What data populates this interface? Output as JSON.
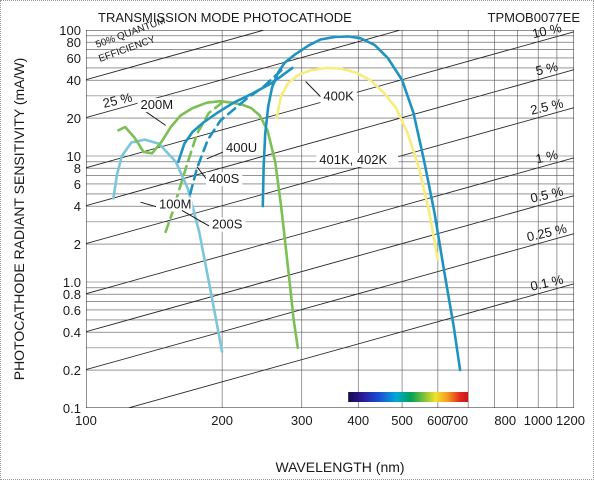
{
  "chart_data": {
    "type": "line",
    "title": "TRANSMISSION MODE PHOTOCATHODE",
    "subtitle": "TPMOB0077EE",
    "xlabel": "WAVELENGTH (nm)",
    "ylabel": "PHOTOCATHODE RADIANT SENSITIVITY (mA/W)",
    "x_scale": "log",
    "y_scale": "log",
    "xlim": [
      100,
      1200
    ],
    "ylim": [
      0.1,
      100
    ],
    "grid": true,
    "x_ticks": [
      {
        "v": 100,
        "label": "100"
      },
      {
        "v": 200,
        "label": "200"
      },
      {
        "v": 300,
        "label": "300"
      },
      {
        "v": 400,
        "label": "400"
      },
      {
        "v": 500,
        "label": "500"
      },
      {
        "v": 600,
        "label": "600"
      },
      {
        "v": 700,
        "label": "700"
      },
      {
        "v": 800,
        "label": "800"
      },
      {
        "v": 1000,
        "label": "1000"
      },
      {
        "v": 1200,
        "label": "1200"
      }
    ],
    "y_ticks": [
      {
        "v": 0.1,
        "label": "0.1"
      },
      {
        "v": 0.2,
        "label": "0.2"
      },
      {
        "v": 0.4,
        "label": "0.4"
      },
      {
        "v": 0.6,
        "label": "0.6"
      },
      {
        "v": 0.8,
        "label": "0.8"
      },
      {
        "v": 1,
        "label": "1.0"
      },
      {
        "v": 2,
        "label": "2"
      },
      {
        "v": 4,
        "label": "4"
      },
      {
        "v": 6,
        "label": "6"
      },
      {
        "v": 8,
        "label": "8"
      },
      {
        "v": 10,
        "label": "10"
      },
      {
        "v": 20,
        "label": "20"
      },
      {
        "v": 40,
        "label": "40"
      },
      {
        "v": 60,
        "label": "60"
      },
      {
        "v": 80,
        "label": "80"
      },
      {
        "v": 100,
        "label": "100"
      }
    ],
    "quantum_efficiency": {
      "caption": [
        "50% QUANTUM",
        "EFFICIENCY"
      ],
      "lines": [
        {
          "label": "25 %",
          "qe": 0.25
        },
        {
          "label": "10 %",
          "qe": 0.1
        },
        {
          "label": "5 %",
          "qe": 0.05
        },
        {
          "label": "2.5 %",
          "qe": 0.025
        },
        {
          "label": "1 %",
          "qe": 0.01
        },
        {
          "label": "0.5 %",
          "qe": 0.005
        },
        {
          "label": "0.25 %",
          "qe": 0.0025
        },
        {
          "label": "0.1 %",
          "qe": 0.001
        }
      ],
      "extra": [
        0.5
      ]
    },
    "series": [
      {
        "name": "100M",
        "color": "#7cc6dc",
        "dash": false,
        "points": [
          [
            115,
            4.6
          ],
          [
            117,
            7
          ],
          [
            120,
            10
          ],
          [
            126,
            12.8
          ],
          [
            135,
            13.5
          ],
          [
            145,
            12.5
          ],
          [
            158,
            9
          ],
          [
            168,
            5.5
          ],
          [
            178,
            2.5
          ],
          [
            188,
            0.9
          ],
          [
            194,
            0.5
          ],
          [
            200,
            0.28
          ]
        ]
      },
      {
        "name": "200M",
        "color": "#7cbf55",
        "dash": false,
        "points": [
          [
            118,
            16
          ],
          [
            122,
            17
          ],
          [
            128,
            14
          ],
          [
            134,
            10.8
          ],
          [
            140,
            10.5
          ],
          [
            147,
            13
          ],
          [
            154,
            17
          ],
          [
            162,
            21
          ],
          [
            172,
            24
          ],
          [
            185,
            26.5
          ],
          [
            198,
            27.2
          ],
          [
            210,
            26.5
          ],
          [
            222,
            25.5
          ],
          [
            232,
            24
          ],
          [
            242,
            21
          ],
          [
            252,
            16
          ],
          [
            262,
            9
          ],
          [
            270,
            4
          ],
          [
            276,
            2
          ],
          [
            282,
            1
          ],
          [
            288,
            0.5
          ],
          [
            294,
            0.3
          ]
        ]
      },
      {
        "name": "200S",
        "color": "#7cbf55",
        "dash": true,
        "points": [
          [
            150,
            2.5
          ],
          [
            155,
            3.5
          ],
          [
            161,
            5.5
          ],
          [
            168,
            9
          ],
          [
            176,
            15
          ],
          [
            187,
            22
          ],
          [
            200,
            26.5
          ]
        ]
      },
      {
        "name": "400S",
        "color": "#1e93c0",
        "dash": true,
        "points": [
          [
            170,
            5
          ],
          [
            176,
            8
          ],
          [
            186,
            13.5
          ],
          [
            198,
            19
          ],
          [
            214,
            24
          ],
          [
            228,
            29
          ],
          [
            246,
            35
          ],
          [
            260,
            42
          ],
          [
            274,
            50
          ]
        ]
      },
      {
        "name": "400U",
        "color": "#1e93c0",
        "dash": false,
        "points": [
          [
            160,
            9
          ],
          [
            165,
            12.5
          ],
          [
            172,
            15.5
          ],
          [
            182,
            18.5
          ],
          [
            195,
            22
          ],
          [
            212,
            26.5
          ],
          [
            232,
            31
          ],
          [
            258,
            38
          ],
          [
            286,
            50
          ]
        ]
      },
      {
        "name": "400K",
        "color": "#1e93c0",
        "dash": false,
        "points": [
          [
            246,
            4
          ],
          [
            247,
            8
          ],
          [
            249,
            15
          ],
          [
            253,
            25
          ],
          [
            258,
            35
          ],
          [
            266,
            46
          ],
          [
            275,
            55
          ],
          [
            290,
            64
          ],
          [
            310,
            75
          ],
          [
            330,
            84
          ],
          [
            355,
            88
          ],
          [
            380,
            89
          ],
          [
            405,
            86
          ],
          [
            435,
            76
          ],
          [
            465,
            60
          ],
          [
            500,
            40
          ],
          [
            530,
            22
          ],
          [
            560,
            9
          ],
          [
            590,
            3.5
          ],
          [
            620,
            1.2
          ],
          [
            650,
            0.45
          ],
          [
            672,
            0.2
          ]
        ]
      },
      {
        "name": "401K, 402K",
        "color": "#f6ed7c",
        "dash": false,
        "points": [
          [
            264,
            20
          ],
          [
            270,
            30
          ],
          [
            280,
            38
          ],
          [
            295,
            44
          ],
          [
            315,
            48
          ],
          [
            340,
            50
          ],
          [
            365,
            49.5
          ],
          [
            395,
            46
          ],
          [
            425,
            40
          ],
          [
            455,
            32
          ],
          [
            485,
            24
          ],
          [
            515,
            15
          ],
          [
            545,
            8
          ],
          [
            575,
            3.5
          ],
          [
            600,
            1.5
          ]
        ]
      }
    ],
    "series_labels": [
      {
        "series": "100M",
        "text": "100M",
        "tx": 145,
        "ty": 3.9,
        "lx": 132,
        "ly": 4.3
      },
      {
        "series": "200M",
        "text": "200M",
        "tx": 132,
        "ty": 24,
        "lx": 150,
        "ly": 17.5
      },
      {
        "series": "200S",
        "text": "200S",
        "tx": 190,
        "ty": 2.7,
        "lx": 163,
        "ly": 3.7
      },
      {
        "series": "400S",
        "text": "400S",
        "tx": 187,
        "ty": 6.2,
        "lx": 176,
        "ly": 8.2
      },
      {
        "series": "400U",
        "text": "400U",
        "tx": 204,
        "ty": 11,
        "lx": 185,
        "ly": 9.5
      },
      {
        "series": "400K",
        "text": "400K",
        "tx": 335,
        "ty": 28,
        "lx": 306,
        "ly": 39
      },
      {
        "series": "401K, 402K",
        "text": "401K, 402K",
        "tx": 328,
        "ty": 8.8,
        "lx": 420,
        "ly": 10.2
      }
    ],
    "color_band": {
      "from": 380,
      "to": 700
    }
  }
}
